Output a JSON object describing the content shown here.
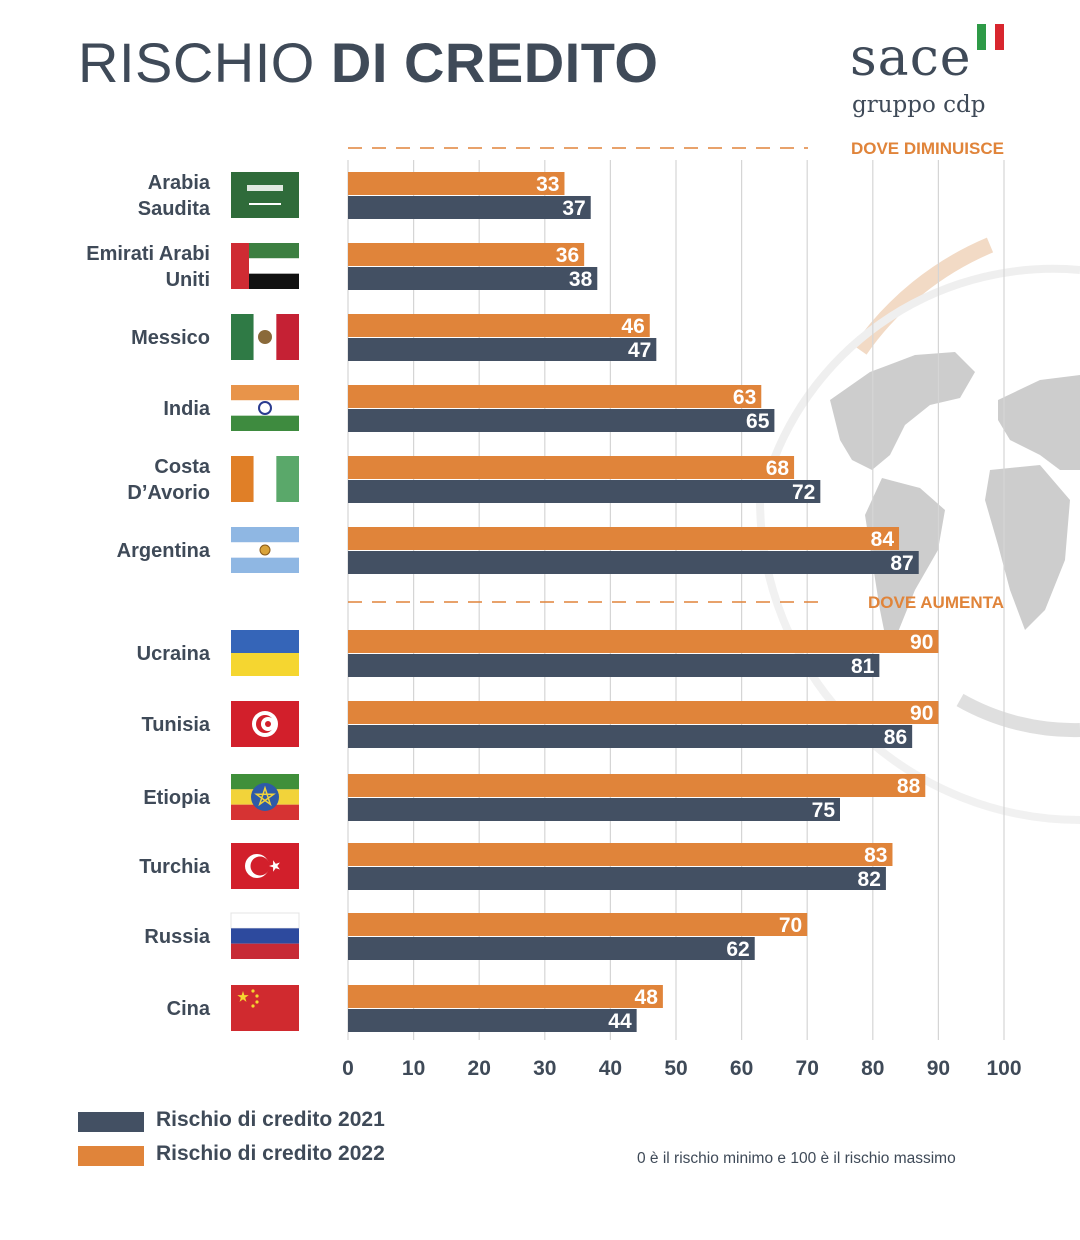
{
  "header": {
    "title_light": "RISCHIO",
    "title_bold": "DI CREDITO",
    "logo_main": "sace",
    "logo_sub": "gruppo cdp"
  },
  "colors": {
    "series_2021": "#435063",
    "series_2022": "#e0843a",
    "text": "#3f4a58",
    "grid": "#d5d5d5",
    "section_label": "#e0843a"
  },
  "chart_data": {
    "type": "bar",
    "orientation": "horizontal",
    "xlim": [
      0,
      100
    ],
    "x_ticks": [
      "0",
      "10",
      "20",
      "30",
      "40",
      "50",
      "60",
      "70",
      "80",
      "90",
      "100"
    ],
    "grid": true,
    "legend_position": "bottom-left",
    "sections": [
      {
        "label": "DOVE DIMINUISCE",
        "start_index": 0
      },
      {
        "label": "DOVE AUMENTA",
        "start_index": 6
      }
    ],
    "categories": [
      [
        "Arabia",
        "Saudita"
      ],
      [
        "Emirati Arabi",
        "Uniti"
      ],
      [
        "Messico"
      ],
      [
        "India"
      ],
      [
        "Costa",
        "D’Avorio"
      ],
      [
        "Argentina"
      ],
      [
        "Ucraina"
      ],
      [
        "Tunisia"
      ],
      [
        "Etiopia"
      ],
      [
        "Turchia"
      ],
      [
        "Russia"
      ],
      [
        "Cina"
      ]
    ],
    "flags": [
      "saudi-arabia",
      "uae",
      "mexico",
      "india",
      "ivory-coast",
      "argentina",
      "ukraine",
      "tunisia",
      "ethiopia",
      "turkey",
      "russia",
      "china"
    ],
    "series": [
      {
        "name": "Rischio di credito 2022",
        "values": [
          33,
          36,
          46,
          63,
          68,
          84,
          90,
          90,
          88,
          83,
          70,
          48
        ]
      },
      {
        "name": "Rischio di credito 2021",
        "values": [
          37,
          38,
          47,
          65,
          72,
          87,
          81,
          86,
          75,
          82,
          62,
          44
        ]
      }
    ]
  },
  "legend": [
    {
      "label": "Rischio di credito 2021",
      "color": "#435063"
    },
    {
      "label": "Rischio di credito 2022",
      "color": "#e0843a"
    }
  ],
  "note": "0 è il rischio minimo e 100 è il rischio massimo"
}
